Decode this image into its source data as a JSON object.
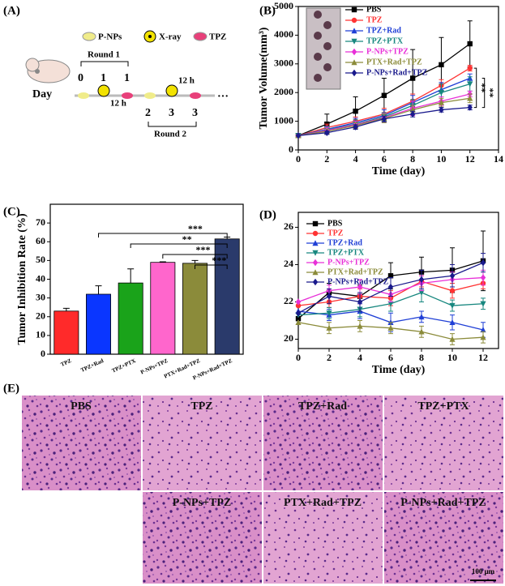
{
  "schematic": {
    "panel_label": "(A)",
    "legend": [
      "P-NPs",
      "X-ray",
      "TPZ"
    ],
    "day_label": "Day",
    "round1": {
      "label": "Round 1",
      "days": [
        "0",
        "1",
        "1"
      ],
      "interval": "12 h"
    },
    "round2": {
      "label": "Round 2",
      "days": [
        "2",
        "3",
        "3"
      ],
      "interval": "12 h"
    },
    "ellipsis": "···"
  },
  "chart_data": [
    {
      "type": "line",
      "panel_label": "(B)",
      "x_label": "Time (day)",
      "y_label": "Tumor Volume(mm³)",
      "x": [
        0,
        2,
        4,
        6,
        8,
        10,
        12
      ],
      "xlim": [
        0,
        14
      ],
      "xticks": [
        0,
        2,
        4,
        6,
        8,
        10,
        12,
        14
      ],
      "ylim": [
        0,
        5000
      ],
      "yticks": [
        0,
        1000,
        2000,
        3000,
        4000,
        5000
      ],
      "series": [
        {
          "name": "PBS",
          "color": "#000000",
          "marker": "square",
          "values": [
            500,
            900,
            1350,
            1900,
            2500,
            2970,
            3700
          ],
          "errors": [
            0,
            350,
            500,
            600,
            1000,
            950,
            800
          ]
        },
        {
          "name": "TPZ",
          "color": "#ff3333",
          "marker": "circle",
          "values": [
            500,
            780,
            1000,
            1250,
            1700,
            2250,
            2850
          ],
          "errors": [
            0,
            120,
            150,
            200,
            250,
            200,
            100
          ]
        },
        {
          "name": "TPZ+Rad",
          "color": "#1f3fd6",
          "marker": "triangle",
          "values": [
            500,
            720,
            950,
            1200,
            1650,
            2100,
            2500
          ],
          "errors": [
            0,
            100,
            150,
            200,
            250,
            250,
            150
          ]
        },
        {
          "name": "TPZ+PTX",
          "color": "#17877f",
          "marker": "triangle-down",
          "values": [
            500,
            700,
            900,
            1150,
            1550,
            2000,
            2300
          ],
          "errors": [
            0,
            100,
            150,
            150,
            200,
            300,
            250
          ]
        },
        {
          "name": "P-NPs+TPZ",
          "color": "#e830d8",
          "marker": "diamond",
          "values": [
            500,
            680,
            880,
            1120,
            1450,
            1700,
            1950
          ],
          "errors": [
            0,
            100,
            120,
            150,
            250,
            150,
            100
          ]
        },
        {
          "name": "PTX+Rad+TPZ",
          "color": "#8b8b3a",
          "marker": "triangle",
          "values": [
            500,
            650,
            850,
            1100,
            1400,
            1650,
            1800
          ],
          "errors": [
            0,
            80,
            100,
            150,
            150,
            150,
            150
          ]
        },
        {
          "name": "P-NPs+Rad+TPZ",
          "color": "#1a1a8c",
          "marker": "diamond",
          "values": [
            500,
            600,
            800,
            1080,
            1250,
            1400,
            1480
          ],
          "errors": [
            0,
            60,
            80,
            100,
            100,
            80,
            80
          ]
        }
      ],
      "brackets": [
        {
          "series": [
            "TPZ",
            "P-NPs+Rad+TPZ"
          ],
          "label": "**"
        },
        {
          "series": [
            "TPZ+Rad",
            "P-NPs+Rad+TPZ"
          ],
          "label": "**"
        }
      ]
    },
    {
      "type": "bar",
      "panel_label": "(C)",
      "y_label": "Tumor Inhibition Rate (%)",
      "categories": [
        "TPZ",
        "TPZ+Rad",
        "TPZ+PTX",
        "P-NPs+TPZ",
        "PTX+Rad+TPZ",
        "P-NPs+Rad+TPZ"
      ],
      "values": [
        23,
        32,
        38,
        49,
        48.5,
        61.5
      ],
      "errors": [
        1.5,
        4.5,
        7.5,
        0.3,
        1.5,
        1
      ],
      "colors": [
        "#ff2a2a",
        "#0a36ff",
        "#1aa31a",
        "#ff66cc",
        "#8b8b3a",
        "#2a3a6b"
      ],
      "ylim": [
        0,
        80
      ],
      "yticks": [
        0,
        10,
        20,
        30,
        40,
        50,
        60,
        70
      ],
      "brackets": [
        {
          "pair": [
            "TPZ+Rad",
            "P-NPs+Rad+TPZ"
          ],
          "label": "***"
        },
        {
          "pair": [
            "TPZ+PTX",
            "P-NPs+Rad+TPZ"
          ],
          "label": "**"
        },
        {
          "pair": [
            "P-NPs+TPZ",
            "P-NPs+Rad+TPZ"
          ],
          "label": "***"
        },
        {
          "pair": [
            "PTX+Rad+TPZ",
            "P-NPs+Rad+TPZ"
          ],
          "label": "***"
        }
      ]
    },
    {
      "type": "line",
      "panel_label": "(D)",
      "x_label": "Time (day)",
      "x": [
        0,
        2,
        4,
        6,
        8,
        10,
        12
      ],
      "xlim": [
        0,
        13
      ],
      "xticks": [
        0,
        2,
        4,
        6,
        8,
        10,
        12
      ],
      "ylim": [
        19.5,
        26.8
      ],
      "yticks": [
        20,
        22,
        24,
        26
      ],
      "series": [
        {
          "name": "PBS",
          "color": "#000000",
          "marker": "square",
          "values": [
            21.1,
            22.5,
            22.3,
            23.4,
            23.6,
            23.7,
            24.2
          ],
          "errors": [
            0,
            0.5,
            0.6,
            0.7,
            0.8,
            1.2,
            1.6
          ]
        },
        {
          "name": "TPZ",
          "color": "#ff3333",
          "marker": "circle",
          "values": [
            21.8,
            22.0,
            22.3,
            22.2,
            23.1,
            22.6,
            23.0
          ],
          "errors": [
            0,
            0.3,
            0.4,
            0.4,
            0.3,
            0.4,
            0.3
          ]
        },
        {
          "name": "TPZ+Rad",
          "color": "#1f3fd6",
          "marker": "triangle",
          "values": [
            21.5,
            21.3,
            21.5,
            20.9,
            21.2,
            20.9,
            20.5
          ],
          "errors": [
            0,
            0.3,
            0.4,
            0.5,
            0.3,
            0.4,
            0.4
          ]
        },
        {
          "name": "TPZ+PTX",
          "color": "#17877f",
          "marker": "triangle-down",
          "values": [
            21.3,
            21.4,
            21.6,
            21.9,
            22.5,
            21.8,
            21.9
          ],
          "errors": [
            0,
            0.3,
            0.4,
            0.4,
            0.5,
            0.3,
            0.3
          ]
        },
        {
          "name": "P-NPs+TPZ",
          "color": "#e830d8",
          "marker": "diamond",
          "values": [
            22.0,
            22.6,
            22.8,
            22.4,
            23.0,
            23.2,
            23.3
          ],
          "errors": [
            0,
            0.3,
            0.4,
            0.4,
            0.4,
            0.4,
            0.4
          ]
        },
        {
          "name": "PTX+Rad+TPZ",
          "color": "#8b8b3a",
          "marker": "triangle",
          "values": [
            20.9,
            20.6,
            20.7,
            20.6,
            20.4,
            20.0,
            20.1
          ],
          "errors": [
            0,
            0.3,
            0.3,
            0.3,
            0.3,
            0.3,
            0.3
          ]
        },
        {
          "name": "P-NPs+Rad+TPZ",
          "color": "#1a1a8c",
          "marker": "diamond",
          "values": [
            21.4,
            22.3,
            22.0,
            22.8,
            23.2,
            23.4,
            24.1
          ],
          "errors": [
            0,
            0.4,
            0.5,
            0.5,
            0.5,
            0.6,
            0.5
          ]
        }
      ]
    }
  ],
  "histology": {
    "panel_label": "(E)",
    "groups": [
      "PBS",
      "TPZ",
      "TPZ+Rad",
      "TPZ+PTX",
      "P-NPs+TPZ",
      "PTX+Rad+TPZ",
      "P-NPs+Rad+TPZ"
    ],
    "scale_bar": "100 μm"
  }
}
